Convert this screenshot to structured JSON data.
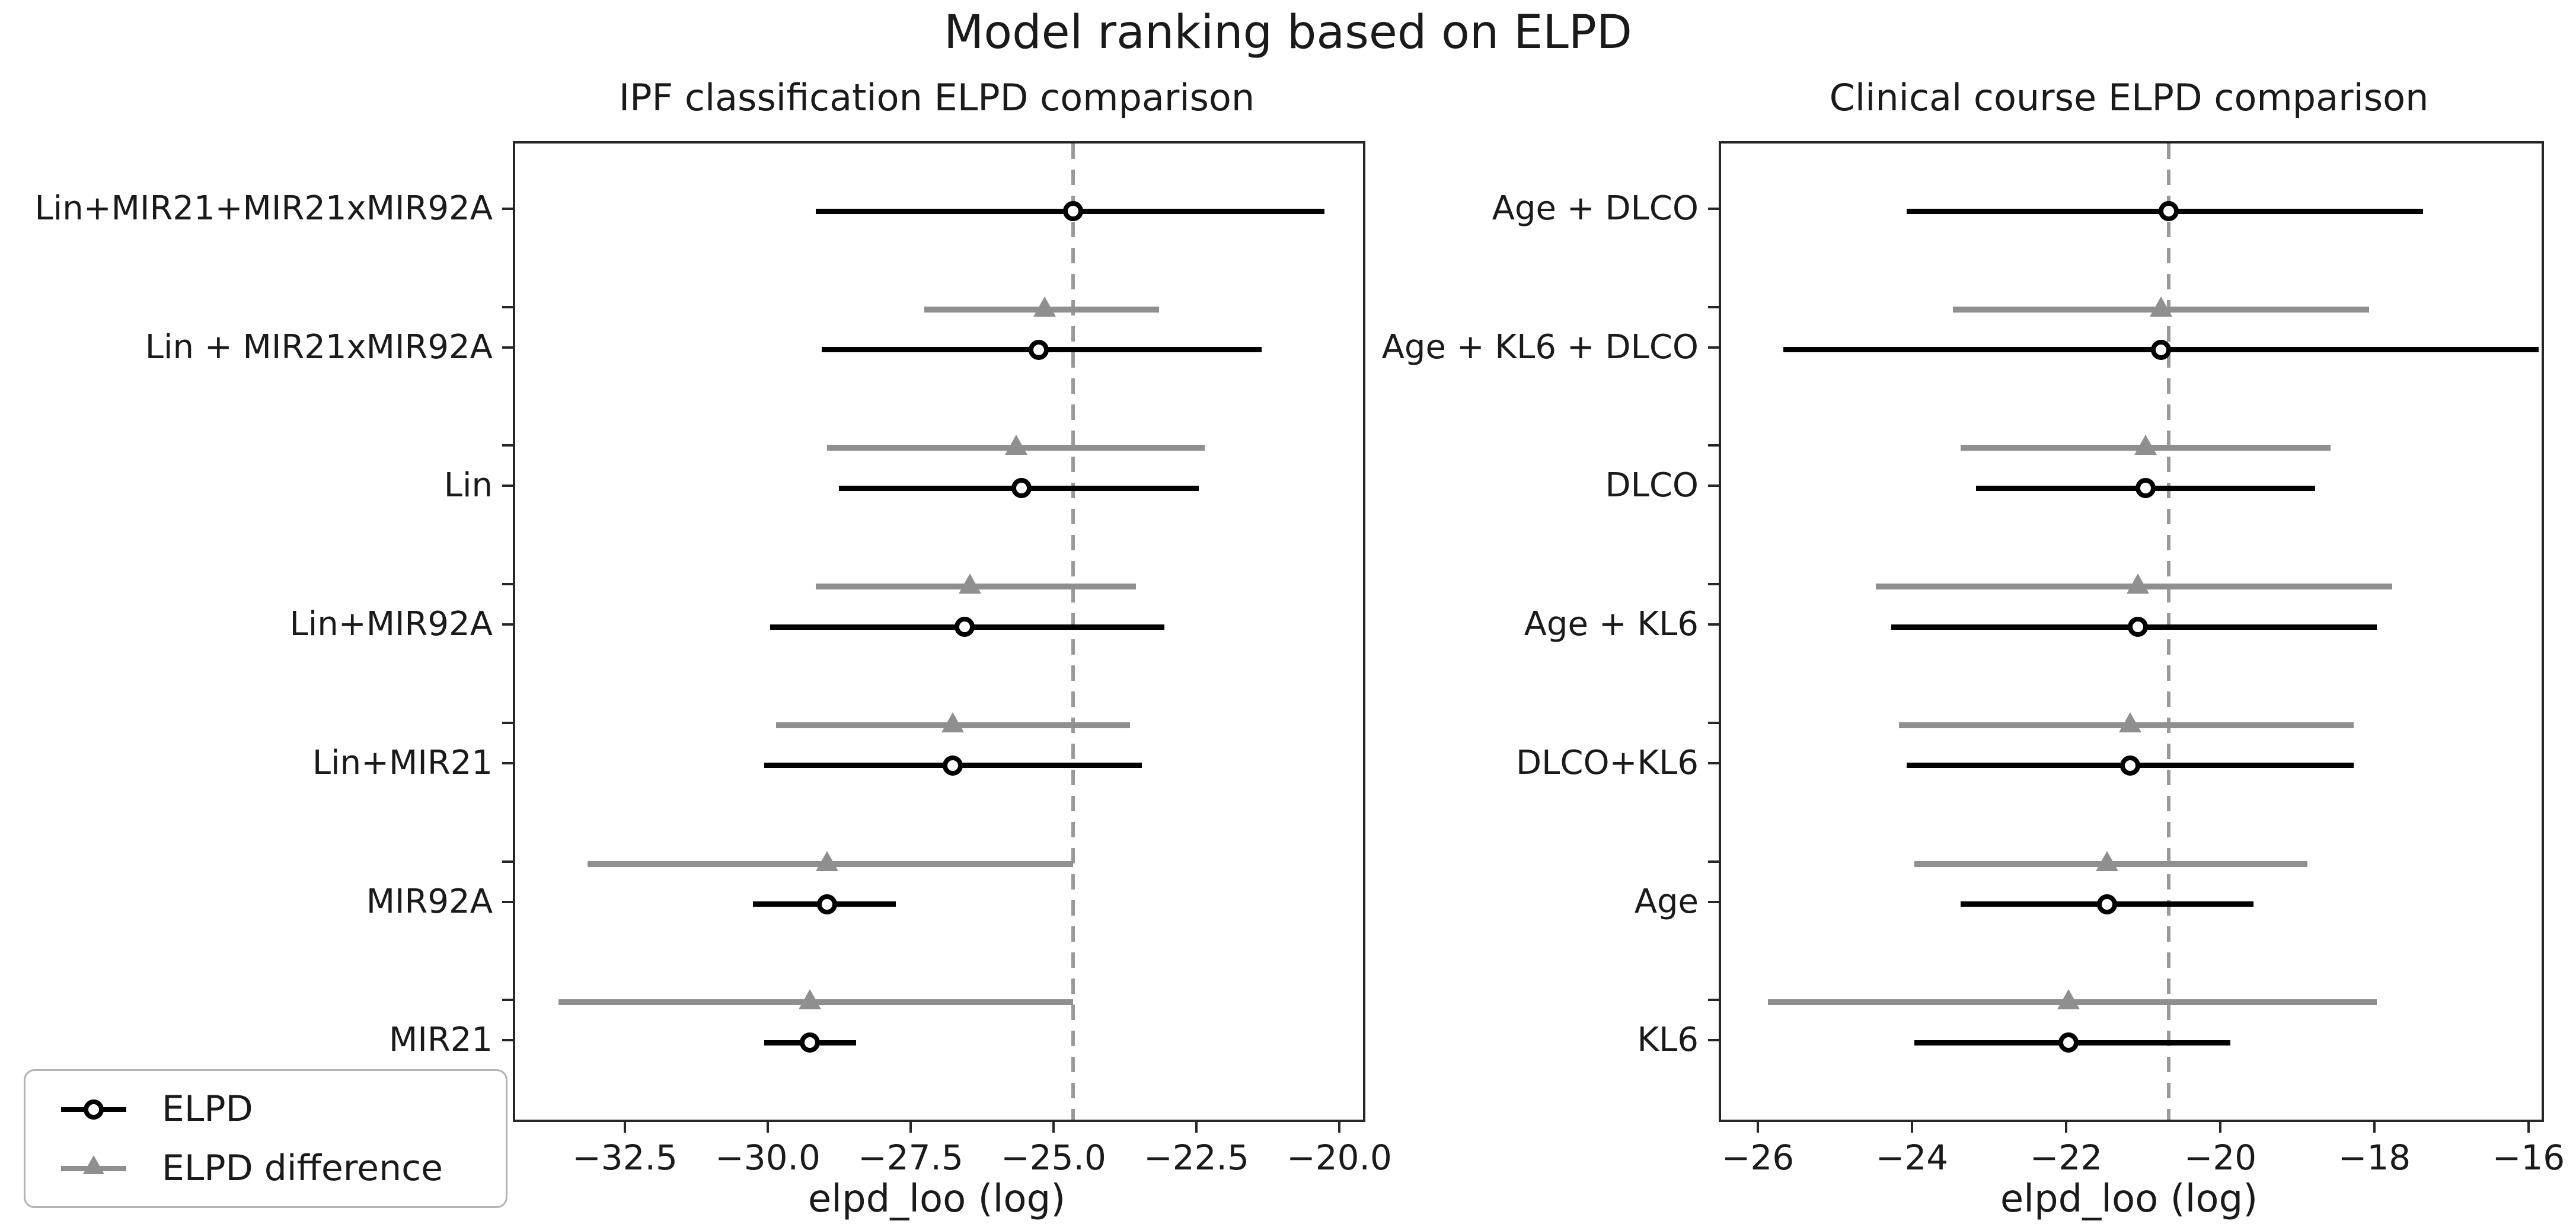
{
  "title": "Model ranking based on ELPD",
  "legend": {
    "elpd_label": "ELPD",
    "diff_label": "ELPD difference",
    "position": "lower left"
  },
  "colors": {
    "elpd": "#000000",
    "diff": "#8f8f8f",
    "dashed_reference": "#999999",
    "frame": "#262626",
    "background": "#ffffff"
  },
  "chart_data": [
    {
      "type": "scatter",
      "subtype": "forest-dot-interval",
      "title": "IPF classification ELPD comparison",
      "xlabel": "elpd_loo (log)",
      "ylabel": "",
      "grid": false,
      "categories": [
        "Lin+MIR21+MIR21xMIR92A",
        "Lin + MIR21xMIR92A",
        "Lin",
        "Lin+MIR92A",
        "Lin+MIR21",
        "MIR92A",
        "MIR21"
      ],
      "xticks": [
        -32.5,
        -30.0,
        -27.5,
        -25.0,
        -22.5,
        -20.0
      ],
      "tick_labels": [
        "−32.5",
        "−30.0",
        "−27.5",
        "−25.0",
        "−22.5",
        "−20.0"
      ],
      "xlim": [
        -34.5,
        -19.6
      ],
      "dashed_line_x": -24.7,
      "series": [
        {
          "name": "ELPD",
          "marker": "circle",
          "color": "#000000",
          "values": [
            -24.7,
            -25.3,
            -25.6,
            -26.6,
            -26.8,
            -29.0,
            -29.3
          ],
          "ci": [
            [
              -29.2,
              -20.3
            ],
            [
              -29.1,
              -21.4
            ],
            [
              -28.8,
              -22.5
            ],
            [
              -30.0,
              -23.1
            ],
            [
              -30.1,
              -23.5
            ],
            [
              -30.3,
              -27.8
            ],
            [
              -30.1,
              -28.5
            ]
          ]
        },
        {
          "name": "ELPD difference",
          "marker": "triangle",
          "color": "#8f8f8f",
          "values": [
            null,
            -25.2,
            -25.7,
            -26.5,
            -26.8,
            -29.0,
            -29.3
          ],
          "ci": [
            null,
            [
              -27.3,
              -23.2
            ],
            [
              -29.0,
              -22.4
            ],
            [
              -29.2,
              -23.6
            ],
            [
              -29.9,
              -23.7
            ],
            [
              -33.2,
              -24.7
            ],
            [
              -33.7,
              -24.7
            ]
          ]
        }
      ]
    },
    {
      "type": "scatter",
      "subtype": "forest-dot-interval",
      "title": "Clinical course ELPD comparison",
      "xlabel": "elpd_loo (log)",
      "ylabel": "",
      "grid": false,
      "categories": [
        "Age + DLCO",
        "Age + KL6 + DLCO",
        "DLCO",
        "Age + KL6",
        "DLCO+KL6",
        "Age",
        "KL6"
      ],
      "xticks": [
        -26,
        -24,
        -22,
        -20,
        -18,
        -16
      ],
      "tick_labels": [
        "−26",
        "−24",
        "−22",
        "−20",
        "−18",
        "−16"
      ],
      "xlim": [
        -26.5,
        -15.9
      ],
      "dashed_line_x": -20.7,
      "series": [
        {
          "name": "ELPD",
          "marker": "circle",
          "color": "#000000",
          "values": [
            -20.7,
            -20.8,
            -21.0,
            -21.1,
            -21.2,
            -21.5,
            -22.0
          ],
          "ci": [
            [
              -24.1,
              -17.4
            ],
            [
              -25.7,
              -15.9
            ],
            [
              -23.2,
              -18.8
            ],
            [
              -24.3,
              -18.0
            ],
            [
              -24.1,
              -18.3
            ],
            [
              -23.4,
              -19.6
            ],
            [
              -24.0,
              -19.9
            ]
          ]
        },
        {
          "name": "ELPD difference",
          "marker": "triangle",
          "color": "#8f8f8f",
          "values": [
            null,
            -20.8,
            -21.0,
            -21.1,
            -21.2,
            -21.5,
            -22.0
          ],
          "ci": [
            null,
            [
              -23.5,
              -18.1
            ],
            [
              -23.4,
              -18.6
            ],
            [
              -24.5,
              -17.8
            ],
            [
              -24.2,
              -18.3
            ],
            [
              -24.0,
              -18.9
            ],
            [
              -25.9,
              -18.0
            ]
          ]
        }
      ]
    }
  ]
}
